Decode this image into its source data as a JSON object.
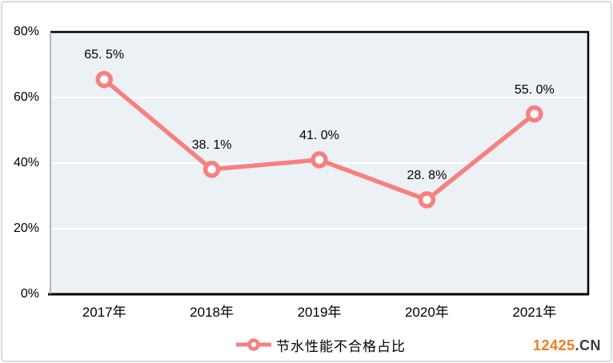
{
  "chart_data": {
    "type": "line",
    "categories": [
      "2017年",
      "2018年",
      "2019年",
      "2020年",
      "2021年"
    ],
    "series": [
      {
        "name": "节水性能不合格占比",
        "values": [
          65.5,
          38.1,
          41.0,
          28.8,
          55.0
        ]
      }
    ],
    "point_labels": [
      "65. 5%",
      "38. 1%",
      "41. 0%",
      "28. 8%",
      "55. 0%"
    ],
    "y_ticks": [
      0,
      20,
      40,
      60,
      80
    ],
    "y_tick_labels": [
      "0%",
      "20%",
      "40%",
      "60%",
      "80%"
    ],
    "ylim": [
      0,
      80
    ],
    "grid": true,
    "legend_position": "bottom",
    "title": "",
    "xlabel": "",
    "ylabel": ""
  },
  "legend": {
    "label": "节水性能不合格占比"
  },
  "watermark": {
    "brand": "12425",
    "suffix": ".CN"
  },
  "colors": {
    "line": "#F88080",
    "marker_fill": "#FFFFFF",
    "plot_bg": "#EBF1F5",
    "gridline": "#FFFFFF",
    "axis": "#000000",
    "left_axis": "#9BA3A9",
    "label_text": "#000000",
    "watermark_brand": "#F47B1F",
    "watermark_suffix": "#3D3D3D",
    "outer_border": "#DCDCDC"
  }
}
